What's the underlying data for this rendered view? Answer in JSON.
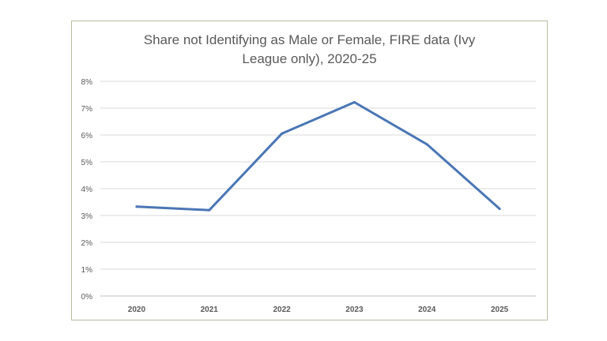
{
  "chart_data": {
    "type": "line",
    "title_lines": [
      "Share not Identifying as Male or Female, FIRE data (Ivy",
      "League only), 2020-25"
    ],
    "xlabel": "",
    "ylabel": "",
    "x": [
      "2020",
      "2021",
      "2022",
      "2023",
      "2024",
      "2025"
    ],
    "series": [
      {
        "values": [
          3.33,
          3.2,
          6.05,
          7.22,
          5.65,
          3.25
        ]
      }
    ],
    "ylim": [
      0,
      8
    ],
    "yticks": [
      "0%",
      "1%",
      "2%",
      "3%",
      "4%",
      "5%",
      "6%",
      "7%",
      "8%"
    ],
    "grid": true,
    "legend": "none",
    "colors": {
      "line": "#4a76b5",
      "grid": "#d9d9d9",
      "axis": "#bfbfbf",
      "text": "#595959",
      "frame": "#b7bfa0"
    }
  }
}
